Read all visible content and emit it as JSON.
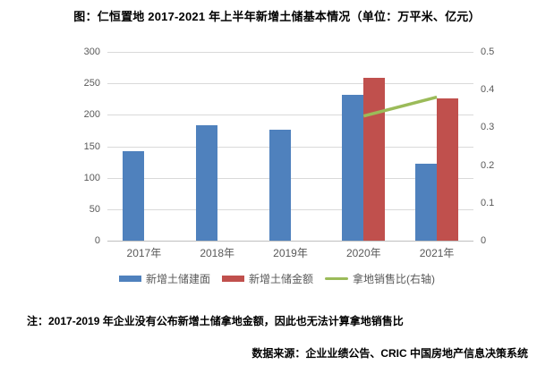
{
  "page": {
    "title": "图：仁恒置地 2017-2021 年上半年新增土储基本情况（单位：万平米、亿元）",
    "note": "注：2017-2019 年企业没有公布新增土储拿地金额，因此也无法计算拿地销售比",
    "source": "数据来源：企业业绩公告、CRIC 中国房地产信息决策系统"
  },
  "chart_data": {
    "type": "bar",
    "subtype": "clustered-bar-with-line-combo",
    "title": "图：仁恒置地 2017-2021 年上半年新增土储基本情况（单位：万平米、亿元）",
    "categories": [
      "2017年",
      "2018年",
      "2019年",
      "2020年",
      "2021年"
    ],
    "series": [
      {
        "name": "新增土储建面",
        "type": "bar",
        "axis": "left",
        "color": "#4F81BD",
        "values": [
          142,
          183,
          177,
          232,
          123
        ]
      },
      {
        "name": "新增土储金额",
        "type": "bar",
        "axis": "left",
        "color": "#C0504D",
        "values": [
          null,
          null,
          null,
          259,
          226
        ]
      },
      {
        "name": "拿地销售比(右轴)",
        "type": "line",
        "axis": "right",
        "color": "#9BBB59",
        "values": [
          null,
          null,
          null,
          0.33,
          0.38
        ]
      }
    ],
    "left_axis": {
      "min": 0,
      "max": 300,
      "step": 50,
      "ticks": [
        "300",
        "250",
        "200",
        "150",
        "100",
        "50",
        "0"
      ]
    },
    "right_axis": {
      "min": 0,
      "max": 0.5,
      "step": 0.1,
      "ticks": [
        "0.5",
        "0.4",
        "0.3",
        "0.2",
        "0.1",
        "0"
      ]
    },
    "grid": "horizontal",
    "legend_position": "bottom",
    "colors": {
      "grid": "#D9D9D9",
      "axis_line": "#BFBFBF",
      "tick_text": "#595959"
    }
  }
}
